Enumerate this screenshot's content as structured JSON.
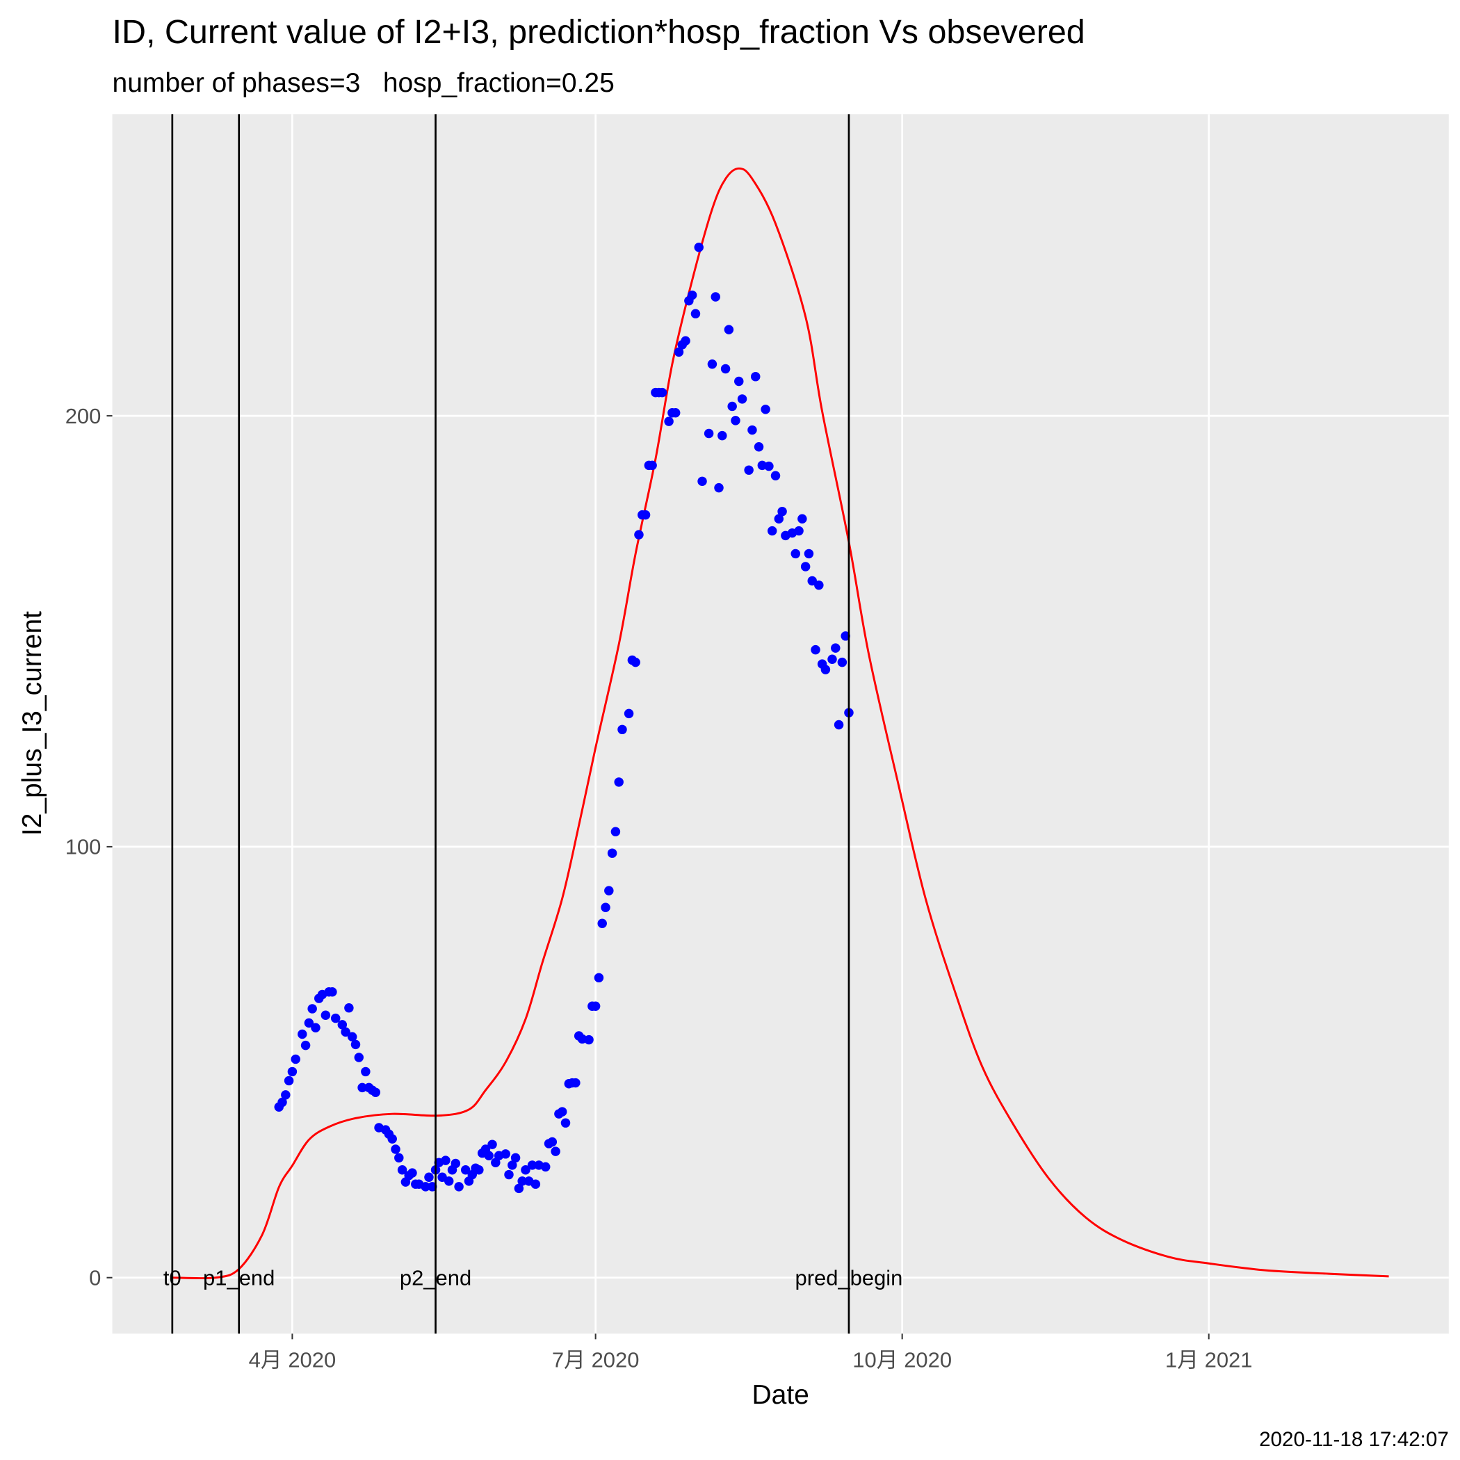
{
  "chart_data": {
    "type": "line",
    "title": "ID, Current value of I2+I3, prediction*hosp_fraction Vs obsevered",
    "subtitle": "number of phases=3   hosp_fraction=0.25",
    "x_label": "Date",
    "y_label": "I2_plus_I3_current",
    "caption": "2020-11-18 17:42:07",
    "xlim": [
      "2020-02-07",
      "2021-03-14"
    ],
    "xticks": [
      {
        "value": "2020-04-01",
        "label": "4月 2020"
      },
      {
        "value": "2020-07-01",
        "label": "7月 2020"
      },
      {
        "value": "2020-10-01",
        "label": "10月 2020"
      },
      {
        "value": "2021-01-01",
        "label": "1月 2021"
      }
    ],
    "ylim": [
      -13,
      270
    ],
    "yticks": [
      0,
      100,
      200
    ],
    "grid": true,
    "vlines": [
      {
        "label": "t0",
        "x": "2020-02-25",
        "color": "#000000"
      },
      {
        "label": "p1_end",
        "x": "2020-03-16",
        "color": "#000000"
      },
      {
        "label": "p2_end",
        "x": "2020-05-14",
        "color": "#000000"
      },
      {
        "label": "pred_begin",
        "x": "2020-09-15",
        "color": "#000000"
      }
    ],
    "series": [
      {
        "type": "line",
        "color": "#ff0000",
        "x": [
          "2020-02-25",
          "2020-03-09",
          "2020-03-16",
          "2020-03-23",
          "2020-03-28",
          "2020-04-01",
          "2020-04-06",
          "2020-04-12",
          "2020-04-20",
          "2020-05-01",
          "2020-05-15",
          "2020-05-24",
          "2020-05-29",
          "2020-06-04",
          "2020-06-10",
          "2020-06-15",
          "2020-06-21",
          "2020-06-26",
          "2020-07-01",
          "2020-07-08",
          "2020-07-13",
          "2020-07-19",
          "2020-07-24",
          "2020-07-30",
          "2020-08-05",
          "2020-08-09",
          "2020-08-13",
          "2020-08-17",
          "2020-08-24",
          "2020-09-02",
          "2020-09-07",
          "2020-09-15",
          "2020-09-21",
          "2020-09-30",
          "2020-10-08",
          "2020-10-17",
          "2020-10-25",
          "2020-11-03",
          "2020-11-14",
          "2020-11-25",
          "2020-12-06",
          "2020-12-20",
          "2021-01-01",
          "2021-01-18",
          "2021-02-06",
          "2021-02-24"
        ],
        "values": [
          0,
          0,
          2,
          10,
          21,
          26,
          32,
          35,
          37,
          38,
          37.6,
          39,
          43.5,
          50,
          60,
          73,
          88,
          105,
          123,
          147,
          168,
          190,
          212,
          231.5,
          248,
          255,
          257.4,
          255,
          244.6,
          223,
          201,
          170.7,
          144.6,
          114,
          88,
          66,
          49,
          36,
          23,
          14,
          8.7,
          4.8,
          3.3,
          1.7,
          0.9,
          0.3
        ]
      },
      {
        "type": "scatter",
        "color": "#0000ff",
        "x": [
          "2020-03-28",
          "2020-03-29",
          "2020-03-30",
          "2020-03-31",
          "2020-04-01",
          "2020-04-02",
          "2020-04-04",
          "2020-04-05",
          "2020-04-06",
          "2020-04-07",
          "2020-04-08",
          "2020-04-09",
          "2020-04-10",
          "2020-04-11",
          "2020-04-12",
          "2020-04-13",
          "2020-04-14",
          "2020-04-16",
          "2020-04-17",
          "2020-04-18",
          "2020-04-19",
          "2020-04-20",
          "2020-04-21",
          "2020-04-22",
          "2020-04-23",
          "2020-04-24",
          "2020-04-25",
          "2020-04-26",
          "2020-04-27",
          "2020-04-29",
          "2020-04-30",
          "2020-05-01",
          "2020-05-02",
          "2020-05-03",
          "2020-05-04",
          "2020-05-05",
          "2020-05-06",
          "2020-05-07",
          "2020-05-08",
          "2020-05-09",
          "2020-05-11",
          "2020-05-12",
          "2020-05-13",
          "2020-05-14",
          "2020-05-15",
          "2020-05-16",
          "2020-05-17",
          "2020-05-18",
          "2020-05-19",
          "2020-05-20",
          "2020-05-21",
          "2020-05-23",
          "2020-05-24",
          "2020-05-25",
          "2020-05-26",
          "2020-05-27",
          "2020-05-28",
          "2020-05-29",
          "2020-05-30",
          "2020-05-31",
          "2020-06-01",
          "2020-06-02",
          "2020-06-04",
          "2020-06-05",
          "2020-06-06",
          "2020-06-07",
          "2020-06-08",
          "2020-06-09",
          "2020-06-10",
          "2020-06-11",
          "2020-06-12",
          "2020-06-13",
          "2020-06-14",
          "2020-06-16",
          "2020-06-17",
          "2020-06-18",
          "2020-06-19",
          "2020-06-20",
          "2020-06-21",
          "2020-06-22",
          "2020-06-23",
          "2020-06-24",
          "2020-06-25",
          "2020-06-26",
          "2020-06-27",
          "2020-06-29",
          "2020-06-30",
          "2020-07-01",
          "2020-07-02",
          "2020-07-03",
          "2020-07-04",
          "2020-07-05",
          "2020-07-06",
          "2020-07-07",
          "2020-07-08",
          "2020-07-09",
          "2020-07-11",
          "2020-07-12",
          "2020-07-13",
          "2020-07-14",
          "2020-07-15",
          "2020-07-16",
          "2020-07-17",
          "2020-07-18",
          "2020-07-19",
          "2020-07-20",
          "2020-07-21",
          "2020-07-23",
          "2020-07-24",
          "2020-07-25",
          "2020-07-26",
          "2020-07-27",
          "2020-07-28",
          "2020-07-29",
          "2020-07-30",
          "2020-07-31",
          "2020-08-01",
          "2020-08-02",
          "2020-08-04",
          "2020-08-05",
          "2020-08-06",
          "2020-08-07",
          "2020-08-08",
          "2020-08-09",
          "2020-08-10",
          "2020-08-11",
          "2020-08-12",
          "2020-08-13",
          "2020-08-14",
          "2020-08-16",
          "2020-08-17",
          "2020-08-18",
          "2020-08-19",
          "2020-08-20",
          "2020-08-21",
          "2020-08-22",
          "2020-08-23",
          "2020-08-24",
          "2020-08-25",
          "2020-08-26",
          "2020-08-27",
          "2020-08-29",
          "2020-08-30",
          "2020-08-31",
          "2020-09-01",
          "2020-09-02",
          "2020-09-03",
          "2020-09-04",
          "2020-09-05",
          "2020-09-06",
          "2020-09-07",
          "2020-09-08",
          "2020-09-10",
          "2020-09-11",
          "2020-09-12",
          "2020-09-13",
          "2020-09-14",
          "2020-09-15"
        ],
        "values": [
          39.6,
          40.7,
          42.4,
          45.7,
          47.8,
          50.7,
          56.5,
          53.9,
          59.1,
          62.4,
          58.0,
          64.8,
          65.7,
          60.9,
          66.3,
          66.3,
          60.2,
          58.7,
          57.0,
          62.6,
          55.9,
          54.1,
          51.1,
          44.1,
          47.8,
          44.1,
          43.5,
          43.0,
          34.8,
          34.3,
          33.3,
          32.2,
          29.8,
          27.8,
          25.0,
          22.2,
          23.7,
          24.3,
          21.7,
          21.7,
          21.1,
          23.3,
          21.1,
          25.0,
          26.7,
          23.3,
          27.2,
          22.4,
          25.0,
          26.5,
          21.1,
          25.0,
          22.4,
          23.9,
          25.4,
          25.0,
          28.9,
          29.8,
          28.3,
          30.9,
          26.7,
          28.3,
          28.7,
          23.9,
          26.1,
          27.8,
          20.7,
          22.4,
          25.0,
          22.4,
          26.1,
          21.7,
          26.1,
          25.7,
          31.1,
          31.5,
          29.3,
          38.0,
          38.5,
          35.9,
          45.0,
          45.2,
          45.2,
          56.1,
          55.4,
          55.2,
          63.0,
          63.0,
          69.6,
          82.2,
          85.9,
          89.8,
          98.5,
          103.5,
          115.0,
          127.2,
          130.9,
          143.3,
          142.8,
          172.4,
          177.0,
          177.0,
          188.5,
          188.5,
          205.4,
          205.4,
          205.4,
          198.7,
          200.7,
          200.7,
          214.8,
          216.5,
          217.4,
          226.7,
          228.0,
          223.7,
          239.1,
          184.8,
          195.9,
          212.0,
          227.6,
          183.3,
          195.4,
          210.9,
          220.0,
          202.2,
          198.9,
          208.0,
          203.9,
          187.4,
          196.7,
          209.1,
          192.8,
          188.5,
          201.5,
          188.3,
          173.3,
          186.1,
          176.1,
          177.8,
          172.2,
          172.8,
          168.0,
          173.3,
          176.1,
          165.0,
          168.0,
          161.7,
          145.7,
          160.7,
          142.4,
          141.1,
          143.5,
          146.1,
          128.3,
          142.8,
          148.9,
          131.1
        ]
      }
    ]
  }
}
